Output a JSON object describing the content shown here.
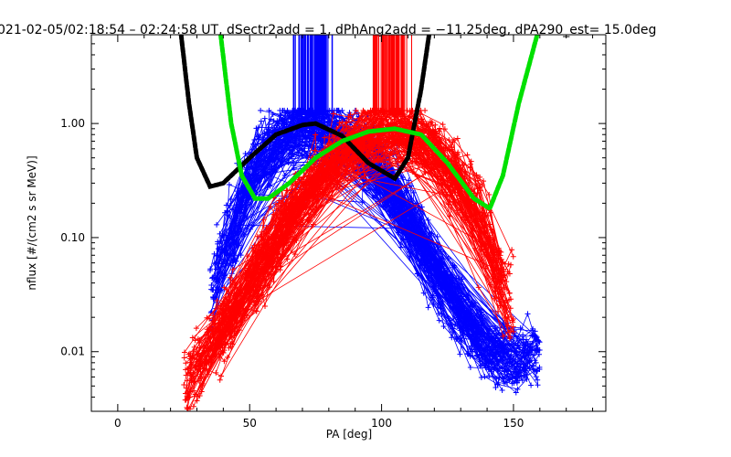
{
  "chart_data": {
    "type": "line",
    "title": "021-02-05/02:18:54 – 02:24:58 UT, dSectr2add = 1, dPhAng2add = −11.25deg, dPA290_est=  15.0deg",
    "xlabel": "PA [deg]",
    "ylabel": "nflux [#/(cm2 s sr MeV)]",
    "xscale": "linear",
    "yscale": "log",
    "xlim": [
      -10,
      185
    ],
    "ylim": [
      0.003,
      6.0
    ],
    "x_ticks": [
      0,
      50,
      100,
      150
    ],
    "x_tick_labels": [
      "0",
      "50",
      "100",
      "150"
    ],
    "y_ticks": [
      0.01,
      0.1,
      1.0
    ],
    "y_tick_labels": [
      "0.01",
      "0.10",
      "1.00"
    ],
    "grid": false,
    "legend": "none",
    "colors": {
      "blue": "#0000ff",
      "red": "#ff0000",
      "black": "#000000",
      "green": "#00e000"
    },
    "series": [
      {
        "color": "blue",
        "style": "line+plus",
        "description_count": 150,
        "peak_pa": 72,
        "peak_flux": 1.0,
        "x": [
          35,
          50,
          60,
          72,
          85,
          95,
          110,
          125,
          140,
          150,
          160
        ],
        "y": [
          0.03,
          0.35,
          0.75,
          1.0,
          0.85,
          0.55,
          0.15,
          0.03,
          0.01,
          0.008,
          0.01
        ]
      },
      {
        "color": "red",
        "style": "line+plus",
        "description_count": 150,
        "peak_pa": 105,
        "peak_flux": 0.95,
        "x": [
          25,
          35,
          50,
          65,
          80,
          95,
          105,
          120,
          135,
          145,
          150
        ],
        "y": [
          0.005,
          0.01,
          0.04,
          0.15,
          0.45,
          0.85,
          0.95,
          0.65,
          0.2,
          0.05,
          0.02
        ]
      },
      {
        "color": "black",
        "style": "thick-dashed",
        "x": [
          24,
          27,
          30,
          35,
          40,
          50,
          60,
          70,
          75,
          85,
          95,
          105,
          110,
          115,
          118
        ],
        "y": [
          6.0,
          1.5,
          0.5,
          0.28,
          0.3,
          0.5,
          0.8,
          0.97,
          1.0,
          0.78,
          0.45,
          0.33,
          0.5,
          2.0,
          6.0
        ]
      },
      {
        "color": "green",
        "style": "thick-dashed",
        "x": [
          39,
          43,
          47,
          52,
          57,
          65,
          75,
          85,
          95,
          105,
          115,
          125,
          135,
          141,
          146,
          152,
          159
        ],
        "y": [
          6.0,
          1.0,
          0.35,
          0.22,
          0.22,
          0.3,
          0.5,
          0.7,
          0.85,
          0.9,
          0.8,
          0.45,
          0.22,
          0.18,
          0.35,
          1.5,
          6.0
        ]
      }
    ],
    "vertical_markers": {
      "blue_range_deg": [
        65,
        82
      ],
      "red_range_deg": [
        94,
        112
      ],
      "top_flux": 6.0,
      "bottom_flux": 1.18
    }
  }
}
